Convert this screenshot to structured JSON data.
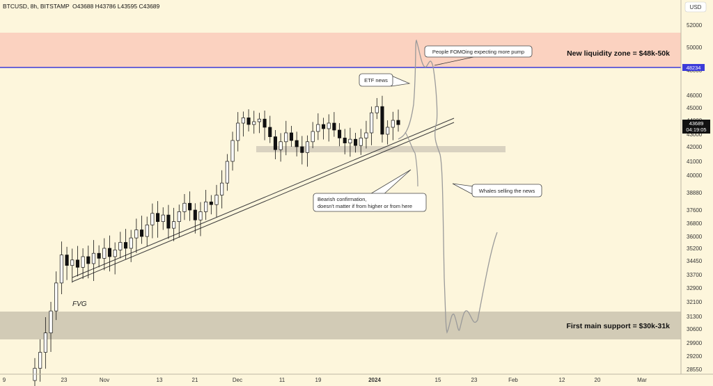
{
  "header": {
    "symbol": "BTCUSD, 8h, BITSTAMP",
    "ohlc": "O43688 H43786 L43595 C43689"
  },
  "currency_label": "USD",
  "colors": {
    "background": "#fdf6dc",
    "liquidity_zone": "#fbd2c0",
    "support_zone": "#d2cbb6",
    "level_line": "#3b3bd9",
    "candle_up": "#ffffff",
    "candle_down": "#111111",
    "projection": "#9a9a9a",
    "trendline": "#3a3a3a",
    "fvg_box": "#d9d2c0"
  },
  "chart_data": {
    "type": "candlestick",
    "symbol": "BTCUSD",
    "timeframe": "8h",
    "exchange": "BITSTAMP",
    "last": {
      "open": 43688,
      "high": 43786,
      "low": 43595,
      "close": 43689
    },
    "y_ticks": [
      52000,
      50000,
      48000,
      46000,
      45000,
      44000,
      43000,
      42000,
      41000,
      40000,
      38880,
      37600,
      36800,
      36000,
      35200,
      34450,
      33700,
      32900,
      32100,
      31300,
      30600,
      29900,
      29200,
      28550
    ],
    "x_ticks": [
      "9",
      "23",
      "Nov",
      "13",
      "21",
      "Dec",
      "11",
      "19",
      "2024",
      "15",
      "23",
      "Feb",
      "12",
      "20",
      "Mar"
    ],
    "price_labels": [
      {
        "value": "48234"
      },
      {
        "value": "43689",
        "countdown": "04:19:05"
      }
    ],
    "zones": [
      {
        "name": "liquidity",
        "from": 48000,
        "to": 50000,
        "label": "New liquidity zone = $48k-50k"
      },
      {
        "name": "support",
        "from": 30000,
        "to": 31000,
        "label": "First main support = $30k-31k"
      }
    ],
    "horizontal_level": 48234,
    "annotations": [
      {
        "text": "People FOMOing expecting more pump"
      },
      {
        "text": "ETF news"
      },
      {
        "text_lines": [
          "Bearish confirmation,",
          "doesn't matter if from higher or from here"
        ]
      },
      {
        "text": "Whales selling the news"
      },
      {
        "text": "FVG"
      }
    ],
    "candles_close_path": [
      [
        28000,
        28600
      ],
      [
        28600,
        29400
      ],
      [
        29400,
        30400
      ],
      [
        30400,
        31600
      ],
      [
        31600,
        33200
      ],
      [
        33200,
        34800
      ],
      [
        34800,
        34200
      ],
      [
        34200,
        34500
      ],
      [
        34500,
        34100
      ],
      [
        34100,
        34700
      ],
      [
        34700,
        34300
      ],
      [
        34300,
        34900
      ],
      [
        34900,
        34600
      ],
      [
        34600,
        35200
      ],
      [
        35200,
        34700
      ],
      [
        34700,
        35100
      ],
      [
        35100,
        35600
      ],
      [
        35600,
        35200
      ],
      [
        35200,
        35900
      ],
      [
        35900,
        36400
      ],
      [
        36400,
        36000
      ],
      [
        36000,
        36700
      ],
      [
        36700,
        37400
      ],
      [
        37400,
        36900
      ],
      [
        36900,
        37300
      ],
      [
        37300,
        36500
      ],
      [
        36500,
        36900
      ],
      [
        36900,
        37500
      ],
      [
        37500,
        38100
      ],
      [
        38100,
        37600
      ],
      [
        37600,
        37000
      ],
      [
        37000,
        37500
      ],
      [
        37500,
        38200
      ],
      [
        38200,
        38000
      ],
      [
        38000,
        38700
      ],
      [
        38700,
        39500
      ],
      [
        39500,
        41000
      ],
      [
        41000,
        42500
      ],
      [
        42500,
        43800
      ],
      [
        43800,
        44200
      ],
      [
        44200,
        43700
      ],
      [
        43700,
        43900
      ],
      [
        43900,
        44100
      ],
      [
        44100,
        43500
      ],
      [
        43500,
        42800
      ],
      [
        42800,
        41800
      ],
      [
        41800,
        42400
      ],
      [
        42400,
        43100
      ],
      [
        43100,
        42500
      ],
      [
        42500,
        42000
      ],
      [
        42000,
        41600
      ],
      [
        41600,
        42400
      ],
      [
        42400,
        43200
      ],
      [
        43200,
        43700
      ],
      [
        43700,
        43400
      ],
      [
        43400,
        43800
      ],
      [
        43800,
        43300
      ],
      [
        43300,
        42700
      ],
      [
        42700,
        42300
      ],
      [
        42300,
        42600
      ],
      [
        42600,
        42100
      ],
      [
        42100,
        42700
      ],
      [
        42700,
        43100
      ],
      [
        43100,
        44600
      ],
      [
        44600,
        45100
      ],
      [
        45100,
        43000
      ],
      [
        43000,
        43500
      ],
      [
        43500,
        44000
      ],
      [
        44000,
        43689
      ]
    ]
  }
}
